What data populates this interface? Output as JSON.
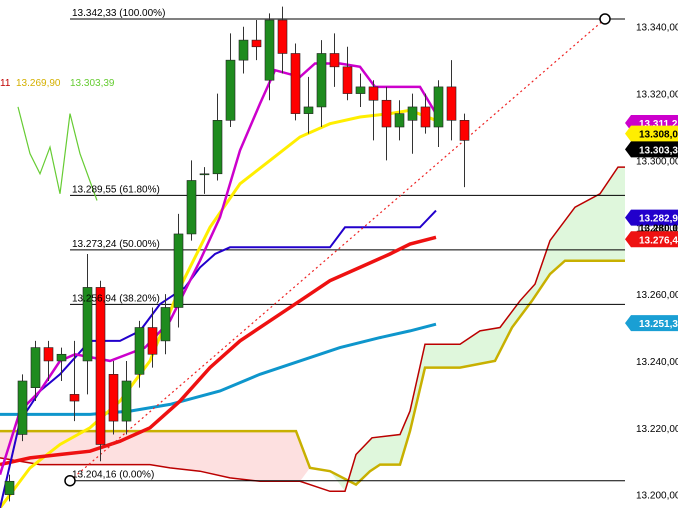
{
  "chart_data": {
    "type": "candlestick",
    "y_range": [
      13196,
      13348
    ],
    "y_ticks": [
      "13.340,00",
      "13.320,00",
      "13.300,00",
      "13.280,00",
      "13.260,00",
      "13.240,00",
      "13.220,00",
      "13.200,00"
    ],
    "y_tick_values": [
      13340,
      13320,
      13300,
      13280,
      13260,
      13240,
      13220,
      13200
    ],
    "colors": {
      "up": "#1e8b1e",
      "down": "#ff0000",
      "cloud_bull": "#dff7dc",
      "cloud_bear": "#fde0e0"
    },
    "legend": [
      {
        "text": "11",
        "color": "#c00000"
      },
      {
        "text": "13.269,90",
        "color": "#d4b000"
      },
      {
        "text": "13.303,39",
        "color": "#66cc33"
      }
    ],
    "fib_levels": [
      {
        "label": "13.342,33 (100.00%)",
        "value": 13342.33
      },
      {
        "label": "13.289,55 (61.80%)",
        "value": 13289.55
      },
      {
        "label": "13.273,24 (50.00%)",
        "value": 13273.24
      },
      {
        "label": "13.256,94 (38.20%)",
        "value": 13256.94
      },
      {
        "label": "13.204,16 (0.00%)",
        "value": 13204.16
      }
    ],
    "price_tags": [
      {
        "text": "13.311,2",
        "value": 13311.2,
        "color": "#cc00cc"
      },
      {
        "text": "13.308,0",
        "value": 13308.0,
        "color": "#ffee00"
      },
      {
        "text": "13.303,3",
        "value": 13303.3,
        "color": "#000000"
      },
      {
        "text": "13.282,9",
        "value": 13282.9,
        "color": "#2200cc"
      },
      {
        "text": "13.280,0",
        "value": 13280.0,
        "color": "#ffffff"
      },
      {
        "text": "13.276,4",
        "value": 13276.4,
        "color": "#ee1111"
      },
      {
        "text": "13.251,3",
        "value": 13251.3,
        "color": "#1a9fd4"
      }
    ],
    "candles": [
      [
        13200,
        13206,
        13198,
        13204
      ],
      [
        13218,
        13236,
        13216,
        13234
      ],
      [
        13232,
        13246,
        13228,
        13244
      ],
      [
        13244,
        13246,
        13234,
        13240
      ],
      [
        13240,
        13244,
        13234,
        13242
      ],
      [
        13230,
        13246,
        13222,
        13228
      ],
      [
        13240,
        13272,
        13230,
        13262
      ],
      [
        13262,
        13264,
        13210,
        13215
      ],
      [
        13236,
        13240,
        13218,
        13222
      ],
      [
        13222,
        13240,
        13218,
        13234
      ],
      [
        13236,
        13252,
        13232,
        13250
      ],
      [
        13250,
        13256,
        13238,
        13242
      ],
      [
        13246,
        13260,
        13242,
        13256
      ],
      [
        13256,
        13284,
        13250,
        13278
      ],
      [
        13278,
        13300,
        13276,
        13294
      ],
      [
        13296,
        13298,
        13290,
        13296
      ],
      [
        13296,
        13320,
        13294,
        13312
      ],
      [
        13312,
        13338,
        13310,
        13330
      ],
      [
        13330,
        13340,
        13326,
        13336
      ],
      [
        13336,
        13342,
        13330,
        13334
      ],
      [
        13324,
        13344,
        13318,
        13342
      ],
      [
        13342,
        13346,
        13326,
        13332
      ],
      [
        13332,
        13335,
        13312,
        13314
      ],
      [
        13314,
        13325,
        13308,
        13316
      ],
      [
        13316,
        13336,
        13310,
        13332
      ],
      [
        13332,
        13338,
        13322,
        13328
      ],
      [
        13328,
        13334,
        13318,
        13320
      ],
      [
        13320,
        13326,
        13316,
        13322
      ],
      [
        13322,
        13324,
        13306,
        13318
      ],
      [
        13318,
        13322,
        13300,
        13310
      ],
      [
        13310,
        13318,
        13306,
        13314
      ],
      [
        13312,
        13320,
        13302,
        13316
      ],
      [
        13316,
        13320,
        13308,
        13310
      ],
      [
        13310,
        13324,
        13304,
        13322
      ],
      [
        13322,
        13330,
        13306,
        13312
      ],
      [
        13312,
        13314,
        13292,
        13306
      ]
    ]
  }
}
